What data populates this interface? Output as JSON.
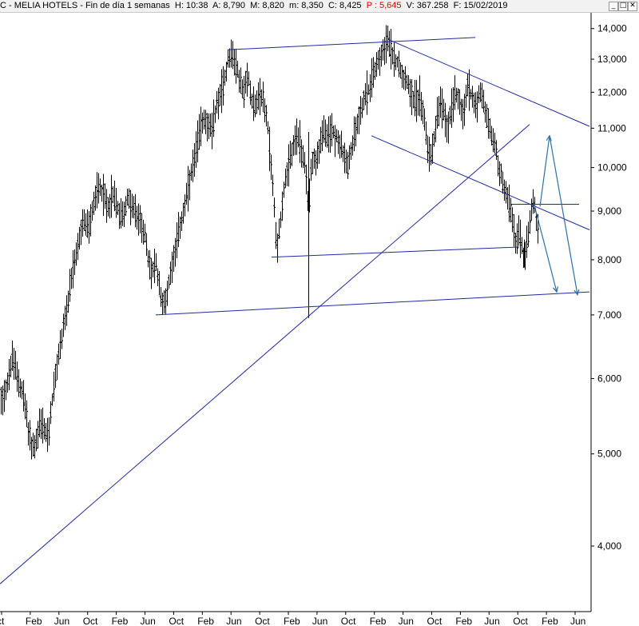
{
  "window": {
    "title_parts": {
      "name": "C - MELIA HOTELS - Fin de día 1 semanas",
      "h": "H: 10:38",
      "a": "A: 8,790",
      "m": "M: 8,820",
      "mn": "m: 8,350",
      "c": "C: 8,425",
      "p": "P : 5,645",
      "v": "V: 367.258",
      "f": "F: 15/02/2019"
    },
    "buttons": {
      "minimize": "_",
      "restore": "□",
      "close": "✕"
    }
  },
  "chart_data": {
    "type": "candlestick",
    "scale": "log",
    "ylim": [
      3500,
      14600
    ],
    "y_ticks": [
      {
        "value": 14000,
        "label": "14,000"
      },
      {
        "value": 13000,
        "label": "13,000"
      },
      {
        "value": 12000,
        "label": "12,000"
      },
      {
        "value": 11000,
        "label": "11,000"
      },
      {
        "value": 10000,
        "label": "10,000"
      },
      {
        "value": 9000,
        "label": "9,000"
      },
      {
        "value": 8000,
        "label": "8,000"
      },
      {
        "value": 7000,
        "label": "7,000"
      },
      {
        "value": 6000,
        "label": "6,000"
      },
      {
        "value": 5000,
        "label": "5,000"
      },
      {
        "value": 4000,
        "label": "4,000"
      }
    ],
    "x_labels": [
      "ct",
      "Feb",
      "Jun",
      "Oct",
      "Feb",
      "Jun",
      "Oct",
      "Feb",
      "Jun",
      "Oct",
      "Feb",
      "Jun",
      "Oct",
      "Feb",
      "Jun",
      "Oct",
      "Feb",
      "Jun",
      "Oct",
      "Feb",
      "Jun"
    ],
    "price_path": [
      [
        0,
        5700
      ],
      [
        5,
        5800
      ],
      [
        10,
        6000
      ],
      [
        15,
        6300
      ],
      [
        20,
        6100
      ],
      [
        25,
        5900
      ],
      [
        30,
        5700
      ],
      [
        35,
        5300
      ],
      [
        40,
        5050
      ],
      [
        45,
        5150
      ],
      [
        50,
        5400
      ],
      [
        55,
        5300
      ],
      [
        60,
        5200
      ],
      [
        65,
        5700
      ],
      [
        70,
        6100
      ],
      [
        75,
        6500
      ],
      [
        80,
        6900
      ],
      [
        85,
        7200
      ],
      [
        90,
        7700
      ],
      [
        95,
        8100
      ],
      [
        100,
        8500
      ],
      [
        105,
        8800
      ],
      [
        110,
        8600
      ],
      [
        115,
        9000
      ],
      [
        120,
        9400
      ],
      [
        125,
        9600
      ],
      [
        130,
        9300
      ],
      [
        135,
        9100
      ],
      [
        140,
        9400
      ],
      [
        145,
        9200
      ],
      [
        150,
        8900
      ],
      [
        155,
        9000
      ],
      [
        160,
        9300
      ],
      [
        165,
        9100
      ],
      [
        170,
        8900
      ],
      [
        175,
        8800
      ],
      [
        180,
        8600
      ],
      [
        185,
        8000
      ],
      [
        190,
        7750
      ],
      [
        195,
        7900
      ],
      [
        200,
        7400
      ],
      [
        205,
        7150
      ],
      [
        210,
        7500
      ],
      [
        215,
        7950
      ],
      [
        220,
        8300
      ],
      [
        225,
        8700
      ],
      [
        230,
        9000
      ],
      [
        235,
        9500
      ],
      [
        240,
        9900
      ],
      [
        245,
        10400
      ],
      [
        250,
        11000
      ],
      [
        255,
        11300
      ],
      [
        260,
        11100
      ],
      [
        265,
        10900
      ],
      [
        270,
        11600
      ],
      [
        275,
        11900
      ],
      [
        280,
        12300
      ],
      [
        285,
        13000
      ],
      [
        290,
        13200
      ],
      [
        295,
        12800
      ],
      [
        300,
        12300
      ],
      [
        305,
        12000
      ],
      [
        310,
        12500
      ],
      [
        315,
        11800
      ],
      [
        320,
        11600
      ],
      [
        325,
        12000
      ],
      [
        330,
        11700
      ],
      [
        335,
        11000
      ],
      [
        340,
        9800
      ],
      [
        343,
        9100
      ],
      [
        346,
        8200
      ],
      [
        350,
        8700
      ],
      [
        355,
        9500
      ],
      [
        360,
        9900
      ],
      [
        365,
        10400
      ],
      [
        370,
        10800
      ],
      [
        375,
        10600
      ],
      [
        380,
        10200
      ],
      [
        383,
        9700
      ],
      [
        386,
        9000
      ],
      [
        389,
        10000
      ],
      [
        392,
        10300
      ],
      [
        395,
        10100
      ],
      [
        400,
        10600
      ],
      [
        405,
        10900
      ],
      [
        410,
        10700
      ],
      [
        415,
        11000
      ],
      [
        420,
        10800
      ],
      [
        425,
        10600
      ],
      [
        430,
        10300
      ],
      [
        435,
        10000
      ],
      [
        440,
        10500
      ],
      [
        445,
        11000
      ],
      [
        450,
        11400
      ],
      [
        455,
        11800
      ],
      [
        460,
        12000
      ],
      [
        465,
        12400
      ],
      [
        470,
        12800
      ],
      [
        475,
        13100
      ],
      [
        480,
        13400
      ],
      [
        485,
        13600
      ],
      [
        490,
        13200
      ],
      [
        495,
        13000
      ],
      [
        500,
        12800
      ],
      [
        505,
        12500
      ],
      [
        510,
        12300
      ],
      [
        515,
        12000
      ],
      [
        520,
        11700
      ],
      [
        525,
        11900
      ],
      [
        530,
        11400
      ],
      [
        535,
        10500
      ],
      [
        540,
        10300
      ],
      [
        545,
        11100
      ],
      [
        550,
        11700
      ],
      [
        555,
        11400
      ],
      [
        560,
        11000
      ],
      [
        565,
        11600
      ],
      [
        570,
        12000
      ],
      [
        575,
        11800
      ],
      [
        580,
        11300
      ],
      [
        585,
        12200
      ],
      [
        590,
        11900
      ],
      [
        595,
        11600
      ],
      [
        600,
        12000
      ],
      [
        605,
        11700
      ],
      [
        610,
        11200
      ],
      [
        615,
        10800
      ],
      [
        620,
        10500
      ],
      [
        625,
        9900
      ],
      [
        630,
        9600
      ],
      [
        635,
        9300
      ],
      [
        640,
        8900
      ],
      [
        645,
        8400
      ],
      [
        650,
        8500
      ],
      [
        655,
        8100
      ],
      [
        660,
        8300
      ],
      [
        665,
        9000
      ],
      [
        668,
        9200
      ],
      [
        671,
        8800
      ],
      [
        674,
        8400
      ]
    ],
    "wick_spikes": [
      {
        "x": 386,
        "low": 6950,
        "high": 10900
      },
      {
        "x": 656,
        "low": 7850,
        "high": 8400
      }
    ],
    "annotations": {
      "trendlines": [
        {
          "from": [
            0,
            3650
          ],
          "to": [
            663,
            11100
          ]
        },
        {
          "from": [
            195,
            7000
          ],
          "to": [
            738,
            7400
          ]
        },
        {
          "from": [
            340,
            8050
          ],
          "to": [
            650,
            8250
          ]
        },
        {
          "from": [
            285,
            13300
          ],
          "to": [
            595,
            13700
          ]
        },
        {
          "from": [
            485,
            13650
          ],
          "to": [
            738,
            11050
          ]
        },
        {
          "from": [
            465,
            10800
          ],
          "to": [
            738,
            8600
          ]
        },
        {
          "from": [
            640,
            9150
          ],
          "to": [
            725,
            9150
          ]
        }
      ],
      "arrows": [
        {
          "points": [
            [
              676,
              9100
            ],
            [
              688,
              10800
            ],
            [
              723,
              7350
            ]
          ]
        },
        {
          "points": [
            [
              668,
              9200
            ],
            [
              697,
              7400
            ]
          ]
        }
      ]
    }
  }
}
